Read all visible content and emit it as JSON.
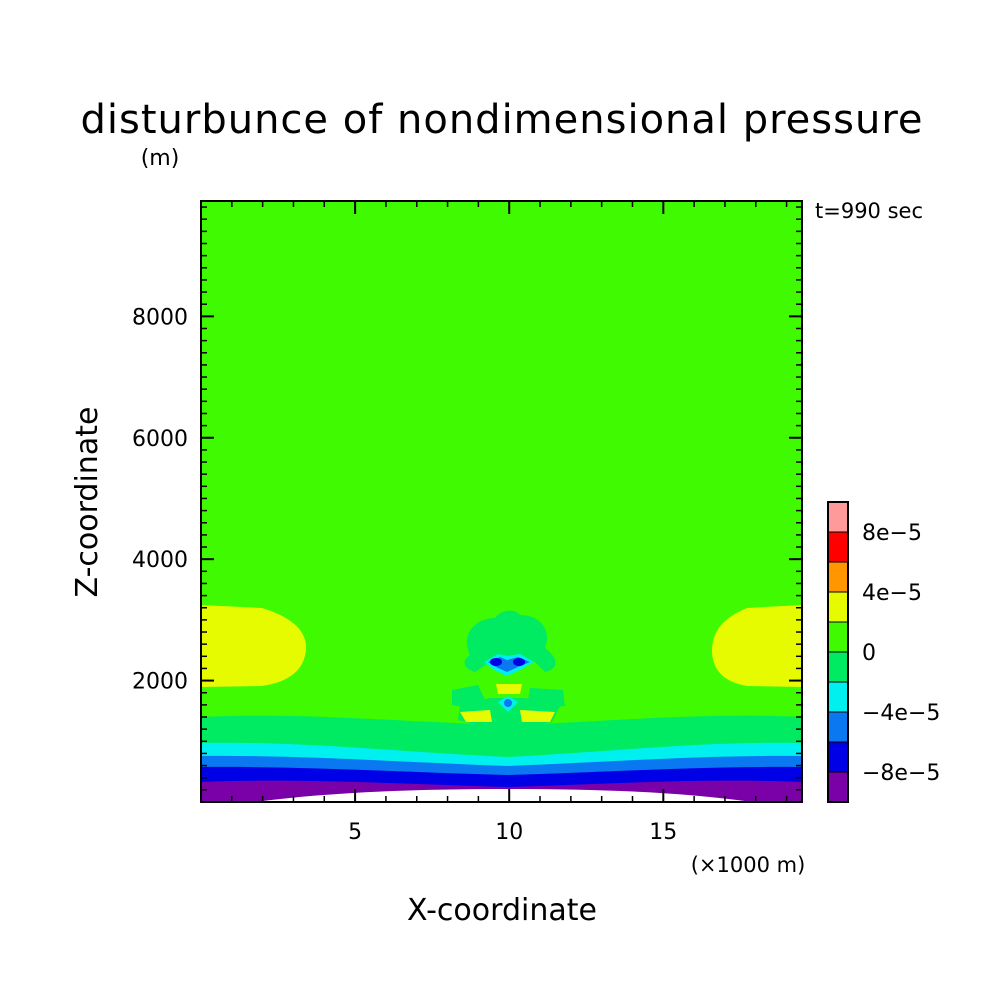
{
  "chart_data": {
    "type": "heatmap",
    "title": "disturbunce of nondimensional pressure",
    "ylabel_unit": "(m)",
    "xlabel": "X-coordinate",
    "ylabel": "Z-coordinate",
    "xunit": "(×1000 m)",
    "time_label": "t=990 sec",
    "xlim": [
      0,
      19.5
    ],
    "ylim": [
      0,
      9900
    ],
    "x_ticks": [
      {
        "value": 5,
        "label": "5"
      },
      {
        "value": 10,
        "label": "10"
      },
      {
        "value": 15,
        "label": "15"
      }
    ],
    "y_ticks": [
      {
        "value": 2000,
        "label": "2000"
      },
      {
        "value": 4000,
        "label": "4000"
      },
      {
        "value": 6000,
        "label": "6000"
      },
      {
        "value": 8000,
        "label": "8000"
      }
    ],
    "colorbar": {
      "levels": [
        -0.0001,
        -8e-05,
        -6e-05,
        -4e-05,
        -2e-05,
        0,
        2e-05,
        4e-05,
        6e-05,
        8e-05,
        0.0001
      ],
      "colors": [
        "#7a00a8",
        "#0000e6",
        "#0a78f0",
        "#00f0f0",
        "#00eb62",
        "#3ffa00",
        "#e6fa00",
        "#ff9600",
        "#ff0000",
        "#ff9a9a"
      ],
      "tick_labels": [
        {
          "value": -8e-05,
          "label": "−8e−5"
        },
        {
          "value": -4e-05,
          "label": "−4e−5"
        },
        {
          "value": 0,
          "label": "0"
        },
        {
          "value": 4e-05,
          "label": "4e−5"
        },
        {
          "value": 8e-05,
          "label": "8e−5"
        }
      ]
    },
    "background_level": "0 to 2e-5",
    "features": [
      {
        "name": "left-positive-lobe",
        "level": "2e-5 to 4e-5",
        "x_range": [
          0,
          3.4
        ],
        "z_range": [
          1900,
          3300
        ]
      },
      {
        "name": "right-positive-lobe",
        "level": "2e-5 to 4e-5",
        "x_range": [
          16.6,
          19.5
        ],
        "z_range": [
          1900,
          3300
        ]
      },
      {
        "name": "central-disturbance",
        "level": "-8e-5 to 4e-5",
        "x_range": [
          8.3,
          11.9
        ],
        "z_range": [
          1300,
          3200
        ]
      },
      {
        "name": "surface-negative-layers",
        "level": "-1e-4 to 0",
        "x_range": [
          0,
          19.5
        ],
        "z_range": [
          0,
          1500
        ]
      }
    ]
  }
}
